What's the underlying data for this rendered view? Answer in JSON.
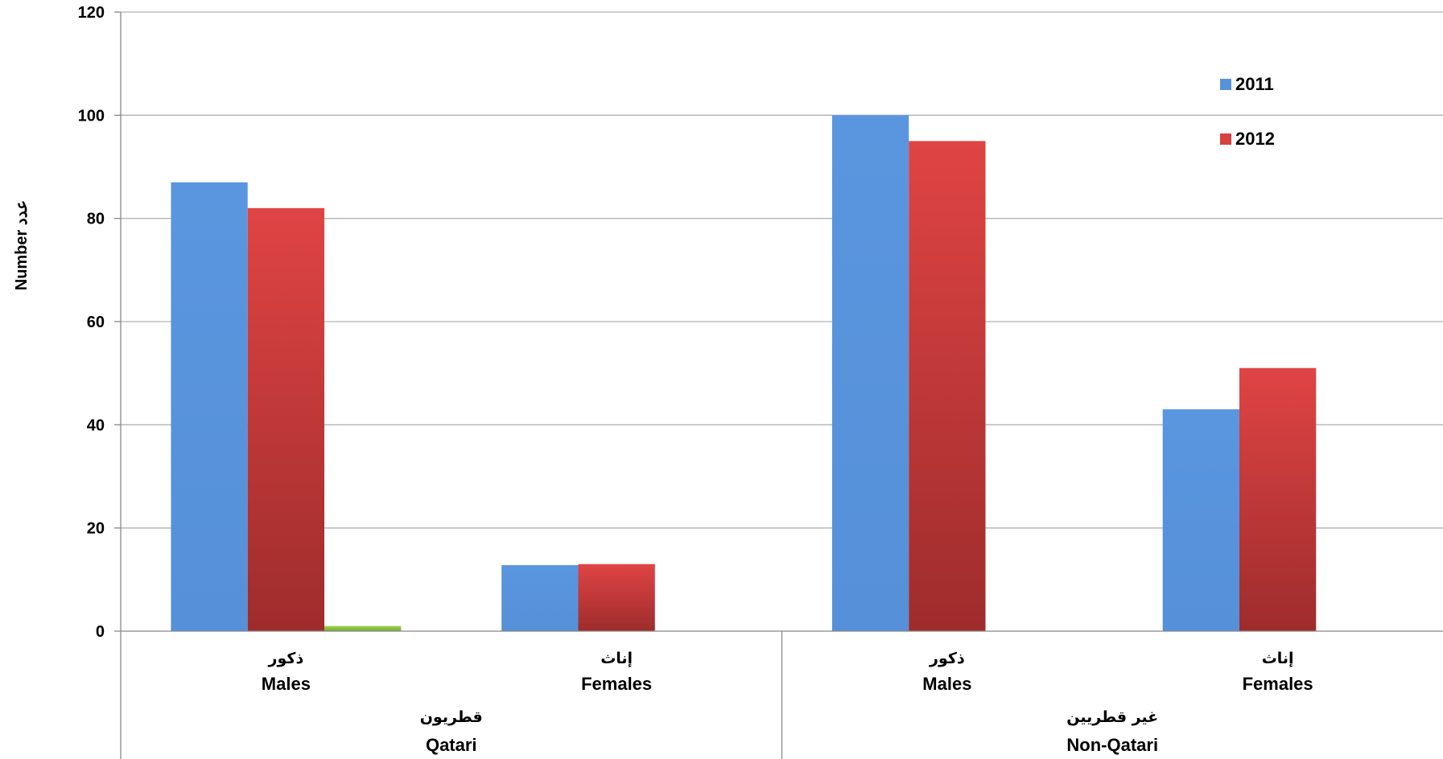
{
  "chart_data": {
    "type": "bar",
    "ylabel": "Number  عدد",
    "ylim": [
      0,
      120
    ],
    "yticks": [
      0,
      20,
      40,
      60,
      80,
      100,
      120
    ],
    "grid": true,
    "legend_position": "top-right",
    "groups": [
      {
        "label_ar": "قطريون",
        "label_en": "Qatari",
        "categories": [
          {
            "label_ar": "ذكور",
            "label_en": "Males"
          },
          {
            "label_ar": "إناث",
            "label_en": "Females"
          }
        ]
      },
      {
        "label_ar": "غير قطريين",
        "label_en": "Non-Qatari",
        "categories": [
          {
            "label_ar": "ذكور",
            "label_en": "Males"
          },
          {
            "label_ar": "إناث",
            "label_en": "Females"
          }
        ]
      }
    ],
    "series": [
      {
        "name": "2011",
        "color": "#5793db",
        "values": [
          87,
          12.8,
          100,
          43
        ]
      },
      {
        "name": "2012",
        "color": "#d94040",
        "values": [
          82,
          13,
          95,
          51
        ]
      },
      {
        "color": "#8cc63f",
        "values": [
          1,
          0,
          0,
          0
        ]
      }
    ]
  }
}
